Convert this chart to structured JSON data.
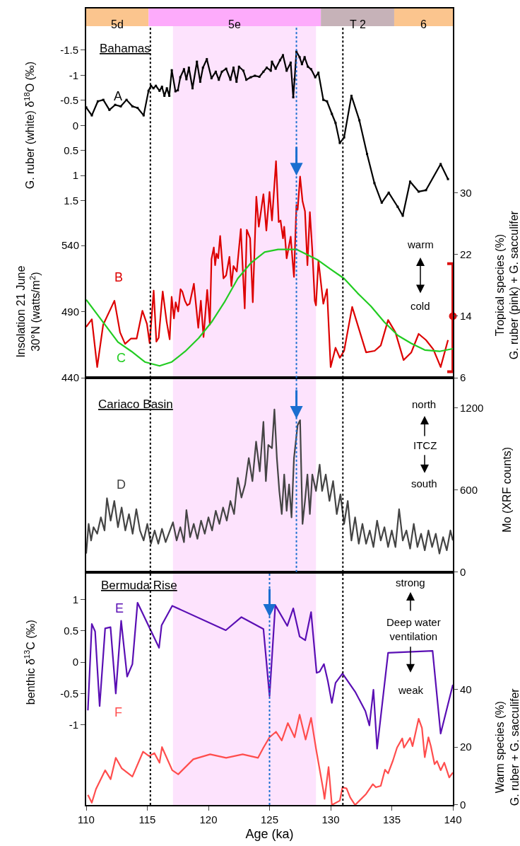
{
  "chart_data": [
    {
      "type": "line",
      "ylabel": "G. ruber (white) δ$^{18}$O (‰)",
      "y3label": "Insolation 21 June\n30°N (watts/m$^{2}$)",
      "y2label": "Tropical species (%)\nG. ruber (pink) + G. sacculifer",
      "xlim": [
        110,
        140
      ],
      "tick_labels": "y",
      "ylim": [
        5.03,
        -2.33
      ],
      "yticks": [
        -1.5,
        -1,
        -0.5,
        0,
        0.5,
        1,
        1.5
      ],
      "y2lim": [
        6,
        53.9
      ],
      "y2ticks": [
        6,
        14,
        22,
        30
      ],
      "y3lim": [
        440,
        719
      ],
      "y3ticks": [
        440,
        490,
        540
      ],
      "series": [
        {
          "name": "A",
          "color": "#000000",
          "marker": "square",
          "x": [
            110,
            110.46,
            110.95,
            111.4,
            111.9,
            112.37,
            112.83,
            113.3,
            113.78,
            114.2,
            114.7,
            115.1,
            115.3,
            115.5,
            115.7,
            116.0,
            116.2,
            116.4,
            116.6,
            116.8,
            117.0,
            117.3,
            117.5,
            117.7,
            118.0,
            118.2,
            118.4,
            118.7,
            119.06,
            119.33,
            119.55,
            119.87,
            120.25,
            120.6,
            120.85,
            121.1,
            121.45,
            121.8,
            122.05,
            122.3,
            122.5,
            122.86,
            123.1,
            123.46,
            123.8,
            124.17,
            124.5,
            124.77,
            125.1,
            125.2,
            125.5,
            125.86,
            126.1,
            126.4,
            126.73,
            126.94,
            127.05,
            127.2,
            127.46,
            127.65,
            127.87,
            128.14,
            128.4,
            128.74,
            129.0,
            129.4,
            129.7,
            130.1,
            130.4,
            130.75,
            131.1,
            131.7,
            132.35,
            132.98,
            133.58,
            134.18,
            134.75,
            135.48,
            135.9,
            136.5,
            137.2,
            137.8,
            139.0,
            139.6
          ],
          "values": [
            -0.36,
            -0.2,
            -0.48,
            -0.51,
            -0.31,
            -0.41,
            -0.38,
            -0.51,
            -0.38,
            -0.35,
            -0.2,
            -0.69,
            -0.79,
            -0.74,
            -0.79,
            -0.69,
            -0.77,
            -0.59,
            -0.74,
            -0.59,
            -1.1,
            -0.68,
            -0.7,
            -0.96,
            -1.12,
            -0.92,
            -1.15,
            -0.74,
            -1.27,
            -0.87,
            -1.15,
            -1.32,
            -0.94,
            -1.07,
            -0.91,
            -1.07,
            -1.13,
            -0.91,
            -1.15,
            -0.87,
            -1.17,
            -1.09,
            -0.91,
            -0.96,
            -0.99,
            -0.97,
            -1.07,
            -1.15,
            -1.09,
            -1.27,
            -1.13,
            -1.3,
            -1.4,
            -1.09,
            -1.25,
            -0.56,
            -0.92,
            -1.47,
            -1.36,
            -1.22,
            -1.36,
            -1.17,
            -1.12,
            -0.96,
            -1.05,
            -0.51,
            -0.48,
            -0.23,
            -0.05,
            0.35,
            0.24,
            -0.59,
            -0.1,
            0.57,
            1.15,
            1.54,
            1.34,
            1.62,
            1.8,
            1.12,
            1.32,
            1.29,
            0.77,
            1.07
          ]
        },
        {
          "name": "B",
          "color": "#dd0000",
          "axis": "y2",
          "x": [
            110.0,
            110.46,
            110.9,
            111.39,
            112.31,
            112.77,
            113.18,
            113.67,
            114.13,
            114.6,
            114.97,
            115.19,
            115.52,
            115.74,
            115.93,
            116.26,
            116.58,
            116.83,
            116.99,
            117.18,
            117.32,
            117.53,
            117.72,
            117.86,
            118.08,
            118.27,
            118.46,
            118.81,
            119.17,
            119.38,
            119.6,
            119.9,
            120.12,
            120.25,
            120.44,
            120.55,
            120.66,
            120.8,
            120.96,
            121.23,
            121.45,
            121.72,
            121.88,
            122.05,
            122.32,
            122.65,
            122.97,
            123.14,
            123.41,
            123.63,
            123.92,
            124.12,
            124.5,
            124.74,
            125.0,
            125.2,
            125.53,
            125.75,
            125.9,
            126.1,
            126.2,
            126.4,
            126.73,
            126.9,
            127.0,
            127.2,
            127.3,
            127.5,
            127.7,
            127.9,
            128.1,
            128.3,
            128.5,
            128.7,
            128.8,
            129.0,
            129.4,
            129.7,
            130.0,
            130.4,
            130.75,
            131.1,
            131.76,
            132.9,
            133.6,
            134.1,
            134.7,
            135.3,
            135.97,
            136.6,
            137.2,
            137.8,
            138.4,
            139.0,
            139.6
          ],
          "values": [
            12.6,
            13.6,
            7.4,
            12.9,
            16.0,
            11.9,
            10.4,
            11.1,
            11.1,
            14.7,
            13.0,
            10.5,
            17.3,
            10.7,
            11.2,
            17.2,
            13.3,
            11.0,
            16.5,
            13.7,
            15.8,
            14.6,
            17.5,
            17.2,
            16.0,
            15.4,
            15.6,
            18.2,
            12.5,
            16.0,
            11.3,
            17.4,
            12.9,
            21.4,
            22.9,
            20.6,
            22.1,
            21.5,
            24.4,
            18.9,
            19.3,
            21.7,
            17.9,
            20.5,
            19.8,
            25.3,
            15.0,
            25.2,
            24.1,
            15.8,
            29.5,
            25.6,
            29.8,
            25.1,
            30.1,
            26.4,
            34.1,
            26.2,
            26.4,
            24.1,
            25.6,
            21.5,
            24.3,
            20.9,
            19.1,
            28.4,
            27.8,
            32.1,
            28.9,
            27.6,
            20.6,
            27.5,
            22.5,
            16.0,
            15.4,
            21.2,
            15.6,
            17.5,
            7.4,
            9.9,
            8.6,
            9.5,
            15.2,
            9.3,
            9.5,
            10.2,
            13.5,
            11.9,
            8.3,
            9.3,
            11.7,
            10.9,
            9.7,
            7.4,
            10.9
          ]
        },
        {
          "name": "C",
          "color": "#22cc22",
          "axis": "y3",
          "x": [
            110,
            111.55,
            112.6,
            113.7,
            114.8,
            116.0,
            117.0,
            118.1,
            119.2,
            120.25,
            121.3,
            122.4,
            123.5,
            124.6,
            125.7,
            127.2,
            128.95,
            130.0,
            131.1,
            132.2,
            133.3,
            134.4,
            135.5,
            136.6,
            137.7,
            138.9,
            140
          ],
          "values": [
            499,
            480,
            467,
            460,
            452,
            449,
            452,
            460,
            470,
            482,
            497,
            515,
            527,
            535,
            537,
            537,
            529,
            522,
            515,
            504,
            494,
            482,
            472,
            466,
            461,
            460,
            462
          ]
        },
        {
          "type": "scatter",
          "color": "#dd1111",
          "axis": "y2",
          "marker": "circle",
          "x": [
            140
          ],
          "values": [
            14
          ],
          "errors": [
            [
              6.8,
              20.8
            ]
          ]
        }
      ],
      "bands": [
        {
          "axis": "x",
          "from": 110,
          "to": 115.1,
          "label": "5d",
          "color": "#fbc58e"
        },
        {
          "axis": "x",
          "from": 115.1,
          "to": 129.2,
          "label": "5e",
          "color": "#fdabfb"
        },
        {
          "axis": "x",
          "from": 129.2,
          "to": 135.2,
          "label": "T 2",
          "color": "#c6b2b8"
        },
        {
          "axis": "x",
          "from": 135.2,
          "to": 140,
          "label": "6",
          "color": "#fbc58e"
        },
        {
          "axis": "x",
          "from": 117.1,
          "to": 128.8,
          "color": "#fde3fd"
        }
      ],
      "ref_lines": [
        {
          "axis": "x",
          "value": 115.25,
          "color": "#000000",
          "line_style": "dotted"
        },
        {
          "axis": "x",
          "value": 131.0,
          "color": "#000000",
          "line_style": "dotted"
        },
        {
          "axis": "x",
          "value": 127.2,
          "color": "#1a6fd0",
          "line_style": "dotted"
        }
      ],
      "annotations": [
        "Bahamas",
        "warm",
        "cold"
      ]
    },
    {
      "type": "line",
      "y2label": "Mo (XRF counts)",
      "xlim": [
        110,
        140
      ],
      "tick_labels": "y",
      "y2lim": [
        0,
        1421
      ],
      "y2ticks": [
        0,
        600,
        1200
      ],
      "series": [
        {
          "name": "D",
          "color": "#444444",
          "axis": "y2",
          "x": [
            110.0,
            110.2,
            110.4,
            110.6,
            110.9,
            111.2,
            111.5,
            111.7,
            112.0,
            112.3,
            112.6,
            112.9,
            113.2,
            113.5,
            113.8,
            114.1,
            114.4,
            114.7,
            115.0,
            115.3,
            115.6,
            115.9,
            116.2,
            116.5,
            116.8,
            117.1,
            117.4,
            117.7,
            118.0,
            118.2,
            118.5,
            118.8,
            119.1,
            119.4,
            119.7,
            120.0,
            120.3,
            120.6,
            120.9,
            121.2,
            121.5,
            121.8,
            122.1,
            122.4,
            122.7,
            123.0,
            123.3,
            123.6,
            123.9,
            124.2,
            124.5,
            124.7,
            124.9,
            125.2,
            125.4,
            125.6,
            125.8,
            126.0,
            126.2,
            126.4,
            126.6,
            126.8,
            127.0,
            127.3,
            127.5,
            127.7,
            127.9,
            128.1,
            128.3,
            128.5,
            128.8,
            129.1,
            129.3,
            129.6,
            129.9,
            130.2,
            130.5,
            130.8,
            131.1,
            131.4,
            131.7,
            132.0,
            132.3,
            132.6,
            132.9,
            133.2,
            133.5,
            133.8,
            134.1,
            134.4,
            134.7,
            135.0,
            135.3,
            135.6,
            135.9,
            136.2,
            136.5,
            136.8,
            137.1,
            137.4,
            137.7,
            138.0,
            138.3,
            138.6,
            138.9,
            139.2,
            139.5,
            139.8,
            140.0
          ],
          "values": [
            135,
            352,
            231,
            328,
            280,
            400,
            304,
            540,
            376,
            520,
            328,
            472,
            304,
            424,
            280,
            460,
            304,
            231,
            352,
            207,
            304,
            207,
            316,
            219,
            292,
            364,
            231,
            328,
            219,
            453,
            255,
            352,
            243,
            376,
            280,
            400,
            304,
            448,
            352,
            472,
            376,
            520,
            424,
            689,
            545,
            641,
            834,
            665,
            954,
            737,
            1099,
            665,
            930,
            906,
            1190,
            834,
            593,
            424,
            713,
            448,
            641,
            400,
            834,
            1075,
            1111,
            352,
            520,
            713,
            424,
            713,
            593,
            786,
            593,
            713,
            520,
            665,
            424,
            569,
            352,
            520,
            231,
            400,
            207,
            352,
            207,
            304,
            183,
            376,
            231,
            328,
            183,
            304,
            183,
            460,
            231,
            304,
            171,
            352,
            183,
            280,
            159,
            304,
            183,
            280,
            135,
            255,
            159,
            304,
            231
          ]
        }
      ],
      "bands": [
        {
          "axis": "x",
          "from": 117.1,
          "to": 128.8,
          "color": "#fde3fd"
        }
      ],
      "ref_lines": [
        {
          "axis": "x",
          "value": 115.25,
          "color": "#000000",
          "line_style": "dotted"
        },
        {
          "axis": "x",
          "value": 131.0,
          "color": "#000000",
          "line_style": "dotted"
        },
        {
          "axis": "x",
          "value": 127.2,
          "color": "#1a6fd0",
          "line_style": "dotted"
        }
      ],
      "annotations": [
        "Cariaco Basin",
        "north",
        "ITCZ",
        "south"
      ]
    },
    {
      "type": "line",
      "xlabel": "Age (ka)",
      "ylabel": "benthic δ$^{13}$C (‰)",
      "y2label": "Warm species (%)\nG. ruber + G. sacculifer",
      "xlim": [
        110,
        140
      ],
      "xticks": [
        110,
        115,
        120,
        125,
        130,
        135,
        140
      ],
      "ylim": [
        -2.28,
        1.44
      ],
      "yticks": [
        -1,
        -0.5,
        0,
        0.5,
        1
      ],
      "y2lim": [
        0,
        80.5
      ],
      "y2ticks": [
        0,
        20,
        40
      ],
      "series": [
        {
          "name": "E",
          "color": "#5a0fb4",
          "x": [
            110.14,
            110.46,
            110.73,
            111.1,
            111.55,
            111.99,
            112.42,
            112.86,
            113.35,
            113.78,
            114.2,
            115.96,
            116.17,
            117.04,
            121.42,
            122.7,
            124.5,
            125.0,
            125.47,
            126.45,
            126.94,
            127.46,
            127.92,
            128.4,
            128.85,
            129.1,
            129.45,
            129.77,
            130.1,
            130.4,
            130.97,
            132.0,
            132.84,
            133.17,
            133.5,
            133.8,
            134.7,
            138.34,
            139.0,
            140.0
          ],
          "values": [
            -0.77,
            0.61,
            0.49,
            -0.7,
            0.54,
            0.56,
            -0.5,
            0.66,
            -0.23,
            -0.03,
            0.95,
            0.23,
            0.59,
            0.9,
            0.51,
            0.72,
            0.53,
            -0.54,
            0.91,
            0.58,
            0.86,
            0.41,
            0.35,
            0.8,
            -0.17,
            -0.15,
            -0.03,
            -0.3,
            -0.65,
            -0.33,
            -0.18,
            -0.47,
            -0.78,
            -1.01,
            -0.44,
            -1.38,
            0.15,
            0.18,
            -1.14,
            -0.36
          ]
        },
        {
          "name": "F",
          "color": "#ff4d4d",
          "axis": "y2",
          "x": [
            110.14,
            110.46,
            110.8,
            111.55,
            112.0,
            112.42,
            112.9,
            113.78,
            114.65,
            115.14,
            115.58,
            116.0,
            116.2,
            117.04,
            117.53,
            118.76,
            120.14,
            121.45,
            122.8,
            124.06,
            124.5,
            125.0,
            125.53,
            126.0,
            126.5,
            127.05,
            127.46,
            127.95,
            128.4,
            128.8,
            129.4,
            129.5,
            129.83,
            130.1,
            130.75,
            130.97,
            131.3,
            131.6,
            132.0,
            132.9,
            133.45,
            133.7,
            134.1,
            134.45,
            134.7,
            135.1,
            135.43,
            135.86,
            136.0,
            136.5,
            136.7,
            137.2,
            137.47,
            137.7,
            138.0,
            138.2,
            138.5,
            138.7,
            139.0,
            139.3,
            139.7,
            140.0
          ],
          "values": [
            3.5,
            0.8,
            5.5,
            12.0,
            8.9,
            16.3,
            12.7,
            9.8,
            18.4,
            16.9,
            17.9,
            14.6,
            20.0,
            12.0,
            10.6,
            15.8,
            17.5,
            16.3,
            17.5,
            16.3,
            19.8,
            23.4,
            25.3,
            22.3,
            28.3,
            23.4,
            31.2,
            22.6,
            30.1,
            19.5,
            5.1,
            2.1,
            13.1,
            0,
            1.5,
            6.1,
            5.7,
            2.6,
            0,
            3.8,
            7.2,
            6.1,
            6.6,
            12.2,
            10.9,
            15.4,
            19.8,
            23.0,
            19.8,
            23.2,
            20.3,
            29.8,
            26.6,
            16.5,
            23.4,
            20.3,
            14.1,
            15.2,
            12.0,
            14.6,
            9.5,
            11.2
          ]
        }
      ],
      "bands": [
        {
          "axis": "x",
          "from": 117.1,
          "to": 128.8,
          "color": "#fde3fd"
        }
      ],
      "ref_lines": [
        {
          "axis": "x",
          "value": 115.25,
          "color": "#000000",
          "line_style": "dotted"
        },
        {
          "axis": "x",
          "value": 131.0,
          "color": "#000000",
          "line_style": "dotted"
        },
        {
          "axis": "x",
          "value": 125.0,
          "color": "#1a6fd0",
          "line_style": "dotted"
        }
      ],
      "annotations": [
        "Bermuda Rise",
        "strong",
        "Deep water\nventilation",
        "weak"
      ]
    }
  ]
}
